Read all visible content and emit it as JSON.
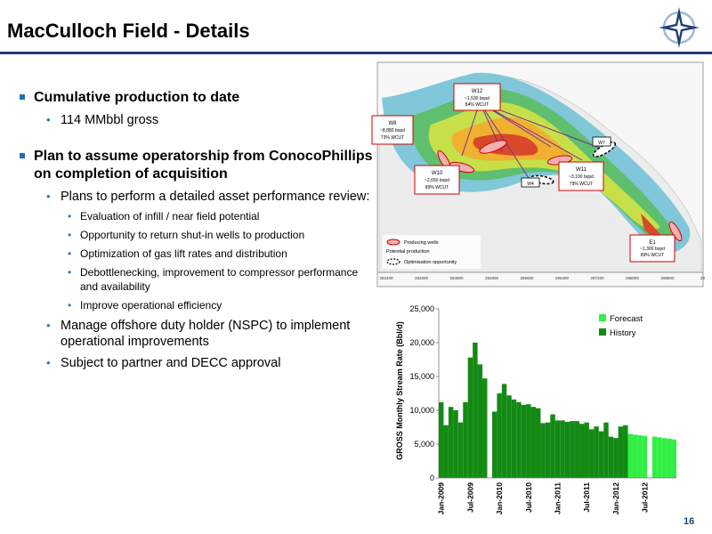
{
  "header": {
    "title": "MacCulloch Field - Details",
    "logo_icon": "compass-star-logo",
    "rule_color": "#1f3f73"
  },
  "bullets": {
    "b1": "Cumulative production to date",
    "b1_1": "114 MMbbl gross",
    "b2": "Plan to assume operatorship from ConocoPhillips on completion of acquisition",
    "b2_1": "Plans to perform a detailed asset performance review:",
    "b2_1_items": [
      "Evaluation of infill / near field potential",
      "Opportunity to return shut-in wells to production",
      "Optimization of gas lift rates and distribution",
      "Debottlenecking, improvement to compressor performance and availability",
      "Improve operational efficiency"
    ],
    "b2_2": "Manage offshore duty holder (NSPC) to implement operational improvements",
    "b2_3": "Subject to partner and DECC approval"
  },
  "map": {
    "well_labels": [
      {
        "name": "W12",
        "rate": "~1,530 bopd",
        "wcut": "84% WCUT"
      },
      {
        "name": "W8",
        "rate": "~8,880 bopd",
        "wcut": "73% WCUT"
      },
      {
        "name": "W10",
        "rate": "~2,650 bopd",
        "wcut": "89% WCUT"
      },
      {
        "name": "W11",
        "rate": "~3,100 bopd",
        "wcut": "79% WCUT"
      },
      {
        "name": "E1",
        "rate": "~1,300 bopd",
        "wcut": "89% WCUT"
      }
    ],
    "small_labels": [
      "W7",
      "W4"
    ],
    "legend": [
      "Producing wells",
      "Potential production",
      "Optimisation opportunity"
    ],
    "x_ticks": [
      "282400",
      "283200",
      "284000",
      "284800",
      "285600",
      "286400",
      "287200",
      "288000",
      "288800",
      "28"
    ]
  },
  "chart_data": {
    "type": "bar",
    "ylabel": "GROSS Monthly Stream Rate (Bbl/d)",
    "ylim": [
      0,
      25000
    ],
    "yticks": [
      "0",
      "5,000",
      "10,000",
      "15,000",
      "20,000",
      "25,000"
    ],
    "xtick_labels": [
      "Jan-2009",
      "Jul-2009",
      "Jan-2010",
      "Jul-2010",
      "Jan-2011",
      "Jul-2011",
      "Jan-2012",
      "Jul-2012"
    ],
    "xtick_index": [
      0,
      6,
      12,
      18,
      24,
      30,
      36,
      42
    ],
    "legend": [
      "Forecast",
      "History"
    ],
    "history_color": "#138a13",
    "forecast_color": "#33ee44",
    "series": [
      {
        "name": "History",
        "start": 0,
        "values": [
          11200,
          7800,
          10500,
          10000,
          8200,
          11200,
          17800,
          20000,
          16800,
          14700,
          null,
          9800,
          12500,
          13900,
          12200,
          11600,
          11200,
          10800,
          10900,
          10500,
          10300,
          8100,
          8200,
          9400,
          8500,
          8500,
          8300,
          8400,
          8400,
          8000,
          8200,
          7200,
          7600,
          6900,
          8200,
          6100,
          5900,
          7600,
          7800
        ]
      },
      {
        "name": "Forecast",
        "start": 39,
        "values": [
          6500,
          6400,
          6300,
          6200,
          null,
          6100,
          6000,
          5900,
          5800,
          5700
        ]
      }
    ]
  }
}
